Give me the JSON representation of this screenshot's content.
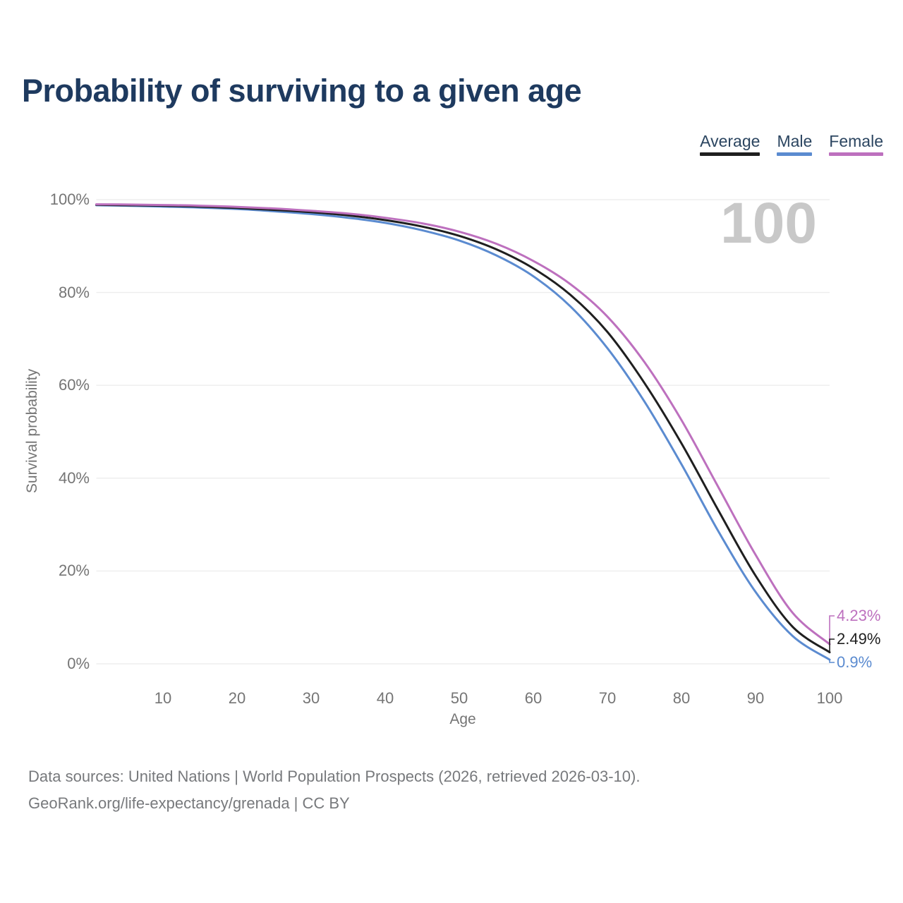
{
  "header": {
    "title": "Probability of surviving to a given age"
  },
  "legend": {
    "items": [
      {
        "label": "Average",
        "color": "#1f1f1f"
      },
      {
        "label": "Male",
        "color": "#5b8bd0"
      },
      {
        "label": "Female",
        "color": "#bd70be"
      }
    ]
  },
  "chart": {
    "watermark": "100",
    "y_axis_label": "Survival probability",
    "x_axis_label": "Age",
    "y_ticks": [
      "100%",
      "80%",
      "60%",
      "40%",
      "20%",
      "0%"
    ],
    "x_ticks": [
      "10",
      "20",
      "30",
      "40",
      "50",
      "60",
      "70",
      "80",
      "90",
      "100"
    ],
    "end_labels": [
      {
        "series": "Female",
        "text": "4.23%"
      },
      {
        "series": "Average",
        "text": "2.49%"
      },
      {
        "series": "Male",
        "text": "0.9%"
      }
    ]
  },
  "colors": {
    "title": "#1e3a5f",
    "legend_text": "#2b4560",
    "axis_text": "#757575",
    "gridline": "#ededed",
    "watermark": "#c8c8c8",
    "footer_text": "#77797c",
    "average": "#1f1f1f",
    "male": "#5b8bd0",
    "female": "#bd70be"
  },
  "chart_data": {
    "type": "line",
    "title": "Probability of surviving to a given age",
    "xlabel": "Age",
    "ylabel": "Survival probability",
    "x_range": [
      1,
      100
    ],
    "ylim_percent": [
      0,
      100
    ],
    "grid": "horizontal-only",
    "legend_position": "top-right",
    "x": [
      1,
      5,
      10,
      15,
      20,
      25,
      30,
      35,
      40,
      45,
      50,
      55,
      60,
      65,
      70,
      75,
      80,
      85,
      90,
      95,
      100
    ],
    "series": [
      {
        "name": "Male",
        "color": "#5b8bd0",
        "end_label": "0.9%",
        "values": [
          98.8,
          98.7,
          98.5,
          98.3,
          98.0,
          97.5,
          96.9,
          96.1,
          95.0,
          93.4,
          91.2,
          88.0,
          83.5,
          77.0,
          68.0,
          56.5,
          43.0,
          28.5,
          15.5,
          6.0,
          0.9
        ]
      },
      {
        "name": "Average",
        "color": "#1f1f1f",
        "end_label": "2.49%",
        "values": [
          98.9,
          98.8,
          98.7,
          98.5,
          98.2,
          97.8,
          97.3,
          96.6,
          95.6,
          94.2,
          92.2,
          89.3,
          85.2,
          79.5,
          71.5,
          60.5,
          47.5,
          33.0,
          19.0,
          8.0,
          2.49
        ]
      },
      {
        "name": "Female",
        "color": "#bd70be",
        "end_label": "4.23%",
        "values": [
          99.0,
          98.95,
          98.85,
          98.7,
          98.45,
          98.1,
          97.6,
          97.0,
          96.1,
          94.9,
          93.1,
          90.5,
          86.8,
          81.8,
          74.8,
          65.0,
          52.5,
          38.0,
          23.5,
          11.0,
          4.23
        ]
      }
    ]
  },
  "footer": {
    "line1": "Data sources: United Nations | World Population Prospects (2026, retrieved 2026-03-10).",
    "line2": "GeoRank.org/life-expectancy/grenada | CC BY"
  }
}
